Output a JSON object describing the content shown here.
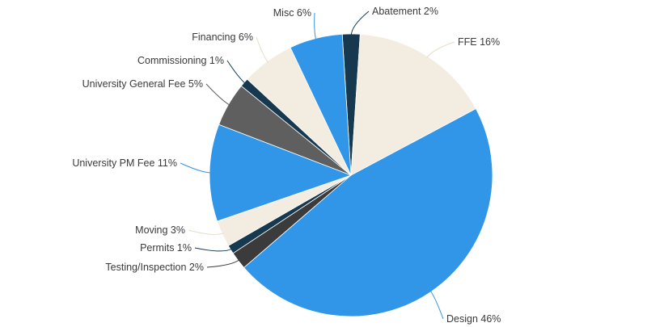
{
  "chart_data": {
    "type": "pie",
    "title": "",
    "slices": [
      {
        "label": "Abatement 2%",
        "value": 2,
        "color": "#17394f"
      },
      {
        "label": "FFE 16%",
        "value": 16,
        "color": "#f3ece0"
      },
      {
        "label": "Design 46%",
        "value": 46,
        "color": "#3196e8"
      },
      {
        "label": "Testing/Inspection 2%",
        "value": 2,
        "color": "#3b3b3b"
      },
      {
        "label": "Permits 1%",
        "value": 1,
        "color": "#17394f"
      },
      {
        "label": "Moving 3%",
        "value": 3,
        "color": "#f3ece0"
      },
      {
        "label": "University PM Fee 11%",
        "value": 11,
        "color": "#3196e8"
      },
      {
        "label": "University General Fee 5%",
        "value": 5,
        "color": "#5f5f5f"
      },
      {
        "label": "Commissioning 1%",
        "value": 1,
        "color": "#17394f"
      },
      {
        "label": "Financing 6%",
        "value": 6,
        "color": "#f3ece0"
      },
      {
        "label": "Misc 6%",
        "value": 6,
        "color": "#3196e8"
      }
    ],
    "legend": "none",
    "labels": "outside-with-leader-lines"
  }
}
